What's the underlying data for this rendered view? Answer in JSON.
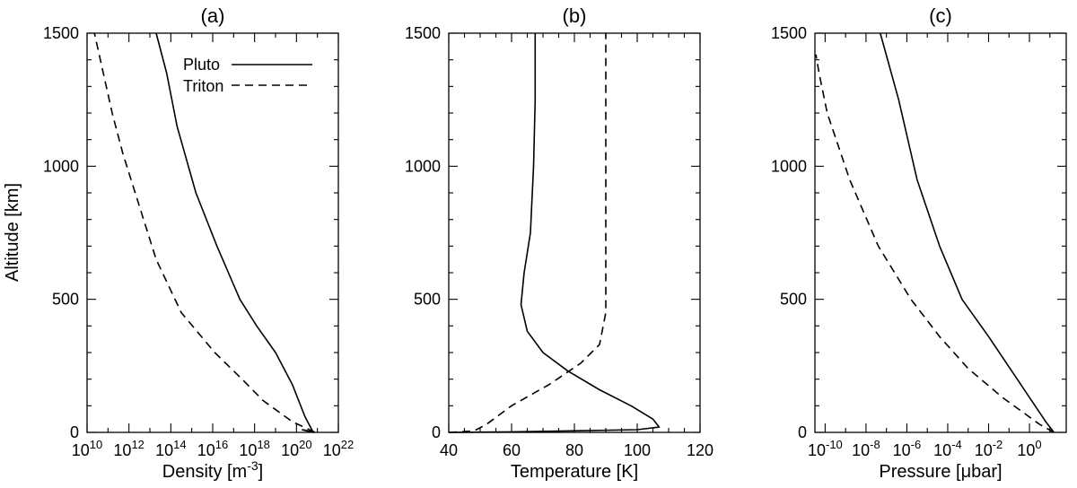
{
  "shared_ylabel": "Altitude [km]",
  "legend": [
    {
      "label": "Pluto",
      "style": "solid"
    },
    {
      "label": "Triton",
      "style": "dashed"
    }
  ],
  "chart_data": [
    {
      "type": "line",
      "title": "(a)",
      "xlabel": "Density [m",
      "xlabel_sup": "-3",
      "xlabel_end": "]",
      "xscale": "log",
      "xlim_log10": [
        10,
        22
      ],
      "xticks": [
        {
          "base": "10",
          "exp": "10"
        },
        {
          "base": "10",
          "exp": "12"
        },
        {
          "base": "10",
          "exp": "14"
        },
        {
          "base": "10",
          "exp": "16"
        },
        {
          "base": "10",
          "exp": "18"
        },
        {
          "base": "10",
          "exp": "20"
        },
        {
          "base": "10",
          "exp": "22"
        }
      ],
      "ylim": [
        0,
        1500
      ],
      "yticks": [
        "0",
        "500",
        "1000",
        "1500"
      ],
      "series": [
        {
          "name": "Pluto",
          "style": "solid",
          "x_log10": [
            20.25,
            20.8,
            20.4,
            19.8,
            19.0,
            18.1,
            17.3,
            16.2,
            15.2,
            14.3,
            13.8,
            13.3
          ],
          "y": [
            10,
            0,
            60,
            180,
            300,
            400,
            500,
            700,
            900,
            1150,
            1350,
            1500
          ]
        },
        {
          "name": "Triton",
          "style": "dashed",
          "x_log10": [
            20.3,
            20.9,
            19.8,
            18.4,
            17.4,
            16.1,
            14.5,
            13.3,
            12.5,
            11.7,
            11.2,
            10.35
          ],
          "y": [
            10,
            0,
            40,
            120,
            200,
            300,
            450,
            650,
            850,
            1050,
            1200,
            1500
          ]
        }
      ]
    },
    {
      "type": "line",
      "title": "(b)",
      "xlabel": "Temperature [K]",
      "xscale": "linear",
      "xlim": [
        40,
        120
      ],
      "xticks": [
        "40",
        "60",
        "80",
        "100",
        "120"
      ],
      "ylim": [
        0,
        1500
      ],
      "yticks": [
        "0",
        "500",
        "1000",
        "1500"
      ],
      "series": [
        {
          "name": "Pluto",
          "style": "solid",
          "x": [
            40,
            60,
            100,
            107,
            105,
            98,
            88,
            78,
            70,
            65,
            63,
            64,
            66,
            67,
            67.5,
            67.5
          ],
          "y": [
            0,
            2,
            10,
            20,
            50,
            100,
            160,
            230,
            300,
            380,
            480,
            600,
            750,
            1000,
            1250,
            1500
          ],
          "points": [
            [
              40,
              0
            ],
            [
              60,
              2
            ],
            [
              100,
              10
            ],
            [
              107,
              20
            ],
            [
              105,
              50
            ],
            [
              98,
              100
            ],
            [
              88,
              160
            ],
            [
              78,
              230
            ],
            [
              70,
              300
            ],
            [
              65,
              380
            ],
            [
              63,
              480
            ],
            [
              64,
              600
            ],
            [
              66,
              750
            ],
            [
              67,
              1000
            ],
            [
              67.5,
              1250
            ],
            [
              67.5,
              1500
            ]
          ]
        },
        {
          "name": "Triton",
          "style": "dashed",
          "x": [
            40,
            48,
            52,
            60,
            72,
            82,
            88,
            90,
            90,
            90,
            90
          ],
          "y": [
            0,
            5,
            30,
            100,
            180,
            260,
            330,
            450,
            700,
            1000,
            1500
          ]
        }
      ]
    },
    {
      "type": "line",
      "title": "(c)",
      "xlabel": "Pressure [μbar]",
      "xscale": "log",
      "xlim_log10": [
        -10.5,
        1.8
      ],
      "xticks": [
        {
          "base": "10",
          "exp": "-10"
        },
        {
          "base": "10",
          "exp": "-8"
        },
        {
          "base": "10",
          "exp": "-6"
        },
        {
          "base": "10",
          "exp": "-4"
        },
        {
          "base": "10",
          "exp": "-2"
        },
        {
          "base": "10",
          "exp": "0"
        }
      ],
      "ylim": [
        0,
        1500
      ],
      "yticks": [
        "0",
        "500",
        "1000",
        "1500"
      ],
      "series": [
        {
          "name": "Pluto",
          "style": "solid",
          "x_log10": [
            1.2,
            0.8,
            -0.6,
            -2.0,
            -3.3,
            -4.4,
            -5.5,
            -6.4,
            -7.3
          ],
          "y": [
            0,
            40,
            200,
            360,
            500,
            700,
            950,
            1250,
            1500
          ]
        },
        {
          "name": "Triton",
          "style": "dashed",
          "x_log10": [
            1.2,
            0.5,
            -1.3,
            -3.0,
            -4.4,
            -5.8,
            -7.4,
            -8.8,
            -9.9,
            -10.3,
            -10.45
          ],
          "y": [
            0,
            30,
            130,
            240,
            360,
            500,
            700,
            950,
            1200,
            1350,
            1420
          ]
        }
      ]
    }
  ]
}
